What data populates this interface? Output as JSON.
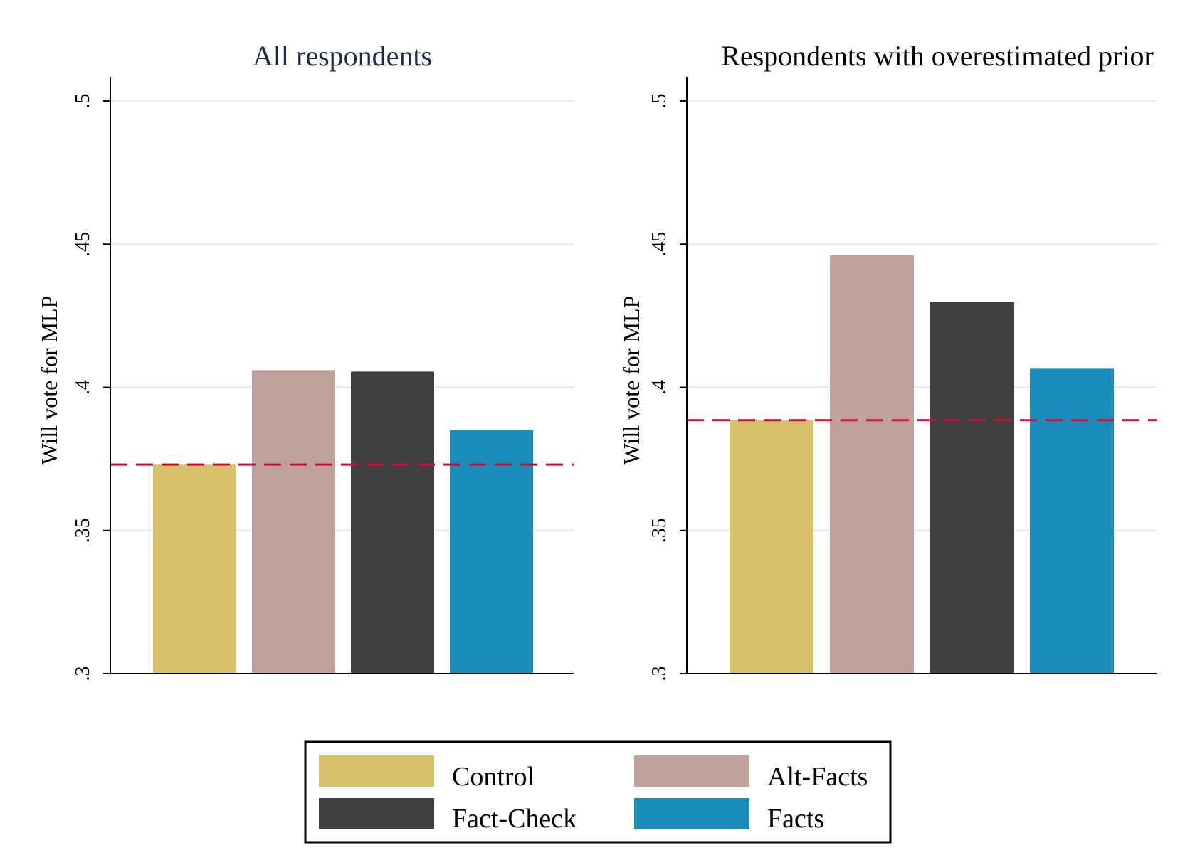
{
  "chart_data": [
    {
      "type": "bar",
      "title": "All respondents",
      "ylabel": "Will vote for MLP",
      "categories": [
        "Control",
        "Alt-Facts",
        "Fact-Check",
        "Facts"
      ],
      "values": [
        0.373,
        0.406,
        0.4055,
        0.385
      ],
      "reference_line": 0.373,
      "ylim": [
        0.3,
        0.5
      ],
      "yticks": [
        0.3,
        0.35,
        0.4,
        0.45,
        0.5
      ],
      "ytick_labels": [
        ".3",
        ".35",
        ".4",
        ".45",
        ".5"
      ],
      "grid": true
    },
    {
      "type": "bar",
      "title": "Respondents with overestimated prior",
      "ylabel": "Will vote for MLP",
      "categories": [
        "Control",
        "Alt-Facts",
        "Fact-Check",
        "Facts"
      ],
      "values": [
        0.3885,
        0.4462,
        0.4297,
        0.4065
      ],
      "reference_line": 0.3885,
      "ylim": [
        0.3,
        0.5
      ],
      "yticks": [
        0.3,
        0.35,
        0.4,
        0.45,
        0.5
      ],
      "ytick_labels": [
        ".3",
        ".35",
        ".4",
        ".45",
        ".5"
      ],
      "grid": true
    }
  ],
  "colors": {
    "Control": "#d8c16a",
    "Alt-Facts": "#bea19b",
    "Fact-Check": "#404040",
    "Facts": "#1a8dbb",
    "reference_line": "#c0143c",
    "grid": "#e6eef0",
    "title_left": "#1a2a4a",
    "title_right": "#000000"
  },
  "legend": {
    "placement": "bottom-center",
    "items": [
      "Control",
      "Alt-Facts",
      "Fact-Check",
      "Facts"
    ]
  }
}
